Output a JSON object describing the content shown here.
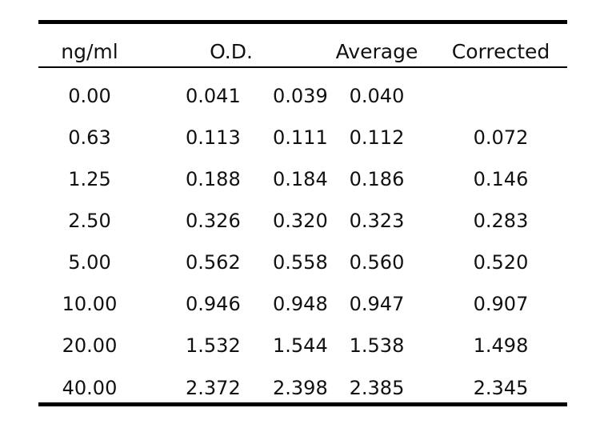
{
  "table": {
    "headers": {
      "concentration": "ng/ml",
      "od": "O.D.",
      "average": "Average",
      "corrected": "Corrected"
    },
    "rows": [
      {
        "conc": "0.00",
        "od1": "0.041",
        "od2": "0.039",
        "avg": "0.040",
        "corr": ""
      },
      {
        "conc": "0.63",
        "od1": "0.113",
        "od2": "0.111",
        "avg": "0.112",
        "corr": "0.072"
      },
      {
        "conc": "1.25",
        "od1": "0.188",
        "od2": "0.184",
        "avg": "0.186",
        "corr": "0.146"
      },
      {
        "conc": "2.50",
        "od1": "0.326",
        "od2": "0.320",
        "avg": "0.323",
        "corr": "0.283"
      },
      {
        "conc": "5.00",
        "od1": "0.562",
        "od2": "0.558",
        "avg": "0.560",
        "corr": "0.520"
      },
      {
        "conc": "10.00",
        "od1": "0.946",
        "od2": "0.948",
        "avg": "0.947",
        "corr": "0.907"
      },
      {
        "conc": "20.00",
        "od1": "1.532",
        "od2": "1.544",
        "avg": "1.538",
        "corr": "1.498"
      },
      {
        "conc": "40.00",
        "od1": "2.372",
        "od2": "2.398",
        "avg": "2.385",
        "corr": "2.345"
      }
    ]
  }
}
